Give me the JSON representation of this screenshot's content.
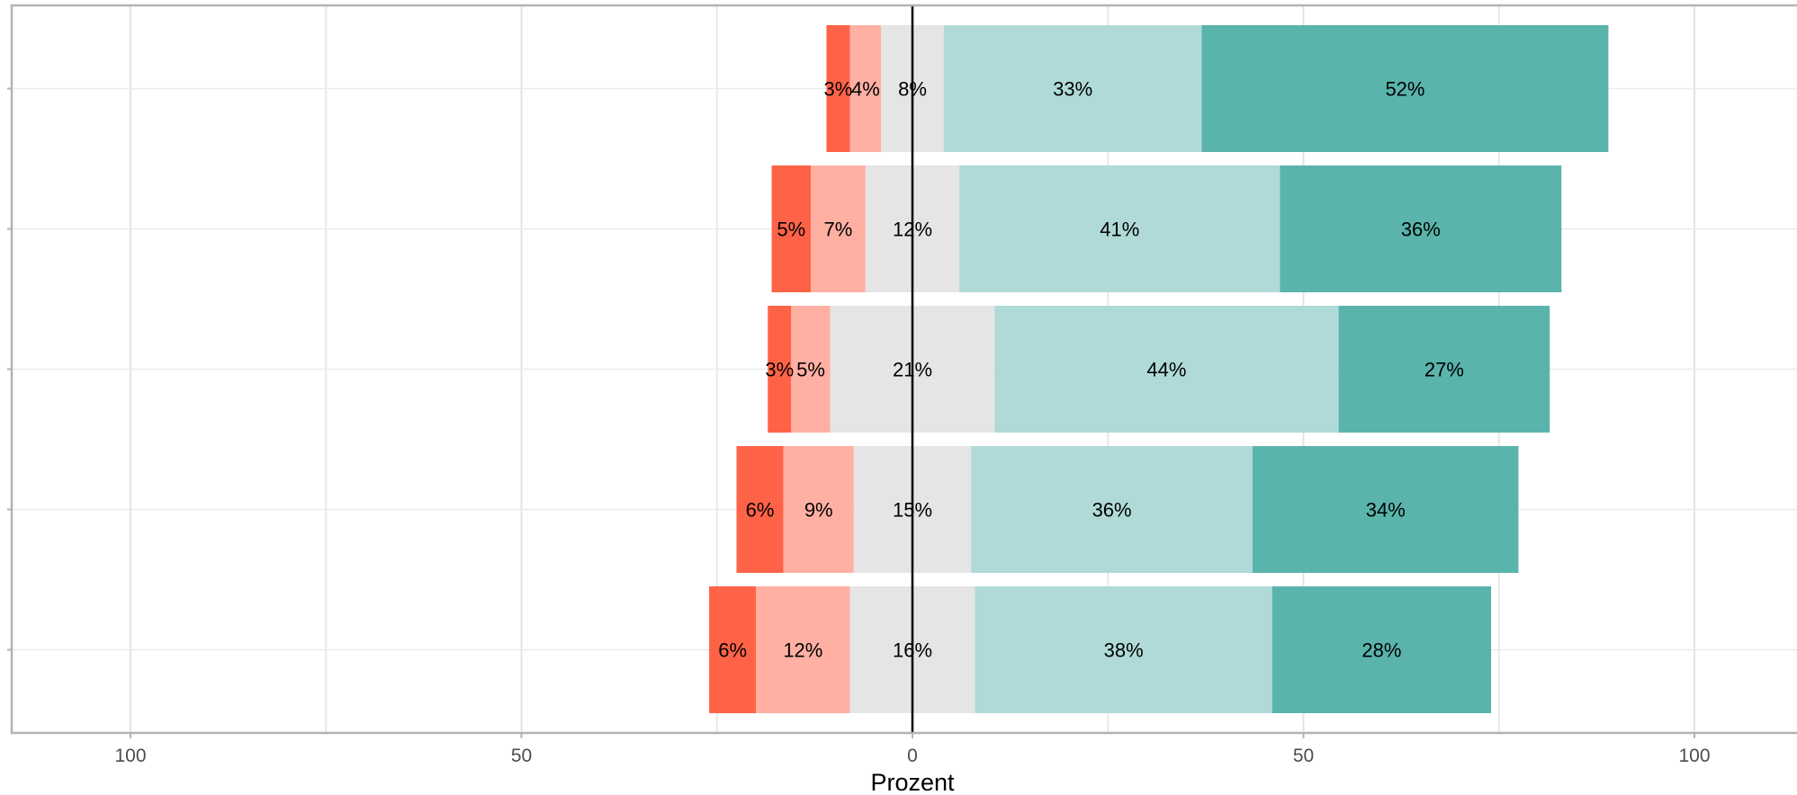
{
  "chart_data": {
    "type": "bar",
    "orientation": "horizontal",
    "stacked": true,
    "diverging": true,
    "categories": [
      "",
      "",
      "",
      "",
      ""
    ],
    "segments": [
      {
        "color": "#ff6347",
        "values": [
          3,
          5,
          3,
          6,
          6
        ],
        "labels": [
          "3%",
          "5%",
          "3%",
          "6%",
          "6%"
        ]
      },
      {
        "color": "#ffb0a3",
        "values": [
          4,
          7,
          5,
          9,
          12
        ],
        "labels": [
          "4%",
          "7%",
          "5%",
          "9%",
          "12%"
        ]
      },
      {
        "color": "#e5e5e5",
        "values": [
          8,
          12,
          21,
          15,
          16
        ],
        "labels": [
          "8%",
          "12%",
          "21%",
          "15%",
          "16%"
        ]
      },
      {
        "color": "#afdad7",
        "values": [
          33,
          41,
          44,
          36,
          38
        ],
        "labels": [
          "33%",
          "41%",
          "44%",
          "36%",
          "38%"
        ]
      },
      {
        "color": "#5ab4ac",
        "values": [
          52,
          36,
          27,
          34,
          28
        ],
        "labels": [
          "52%",
          "36%",
          "27%",
          "34%",
          "28%"
        ]
      }
    ],
    "xlim": [
      -115,
      115
    ],
    "x_ticks": [
      -100,
      -50,
      0,
      50,
      100
    ],
    "x_tick_labels": [
      "100",
      "50",
      "0",
      "50",
      "100"
    ],
    "xlabel": "Prozent",
    "ylabel": "",
    "grid": true,
    "center_line": true
  }
}
